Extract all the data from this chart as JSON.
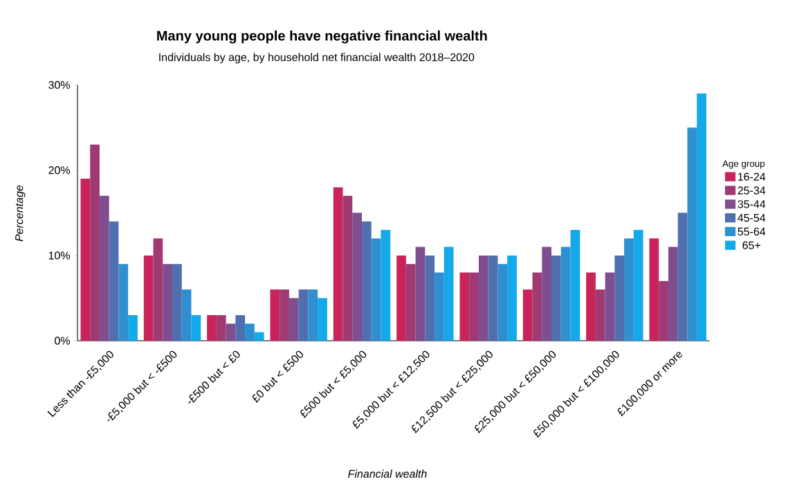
{
  "chart_data": {
    "type": "bar",
    "title": "Many young people have negative financial wealth",
    "subtitle": "Individuals by age, by household net financial wealth 2018–2020",
    "xlabel": "Financial wealth",
    "ylabel": "Percentage",
    "legend_title": "Age group",
    "legend": "right",
    "categories": [
      "Less than -£5,000",
      "-£5,000 but < -£500",
      "-£500 but < £0",
      "£0 but < £500",
      "£500 but < £5,000",
      "£5,000 but < £12,500",
      "£12,500 but < £25,000",
      "£25,000 but < £50,000",
      "£50,000 but < £100,000",
      "£100,000 or more"
    ],
    "series": [
      {
        "name": "16-24",
        "color": "#c9245a",
        "values": [
          19,
          10,
          3,
          6,
          18,
          10,
          8,
          6,
          8,
          12
        ]
      },
      {
        "name": "25-34",
        "color": "#a03a74",
        "values": [
          23,
          12,
          3,
          6,
          17,
          9,
          8,
          8,
          6,
          7
        ]
      },
      {
        "name": "35-44",
        "color": "#7e4e8f",
        "values": [
          17,
          9,
          2,
          5,
          15,
          11,
          10,
          11,
          8,
          11
        ]
      },
      {
        "name": "45-54",
        "color": "#4f6fae",
        "values": [
          14,
          9,
          3,
          6,
          14,
          10,
          10,
          10,
          10,
          15
        ]
      },
      {
        "name": "55-64",
        "color": "#2f8fd0",
        "values": [
          9,
          6,
          2,
          6,
          12,
          8,
          9,
          11,
          12,
          25
        ]
      },
      {
        "name": "65+",
        "color": "#14a9ea",
        "values": [
          3,
          3,
          1,
          5,
          13,
          11,
          10,
          13,
          13,
          29
        ]
      }
    ],
    "ylim": [
      0,
      30
    ],
    "yticks": [
      {
        "value": 0,
        "label": "0%"
      },
      {
        "value": 10,
        "label": "10%"
      },
      {
        "value": 20,
        "label": "20%"
      },
      {
        "value": 30,
        "label": "30%"
      }
    ]
  }
}
